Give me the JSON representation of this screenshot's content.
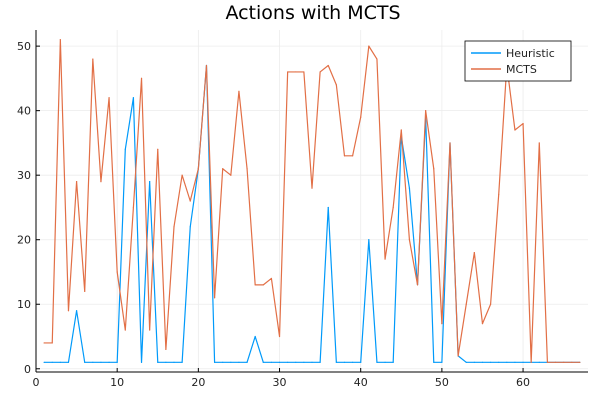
{
  "chart_data": {
    "type": "line",
    "title": "Actions with MCTS",
    "xlabel": "",
    "ylabel": "",
    "xlim": [
      0,
      68
    ],
    "ylim": [
      -0.5,
      52.5
    ],
    "xticks": [
      0,
      10,
      20,
      30,
      40,
      50,
      60
    ],
    "yticks": [
      0,
      10,
      20,
      30,
      40,
      50
    ],
    "grid": true,
    "legend_position": "top-right",
    "x": [
      1,
      2,
      3,
      4,
      5,
      6,
      7,
      8,
      9,
      10,
      11,
      12,
      13,
      14,
      15,
      16,
      17,
      18,
      19,
      20,
      21,
      22,
      23,
      24,
      25,
      26,
      27,
      28,
      29,
      30,
      31,
      32,
      33,
      34,
      35,
      36,
      37,
      38,
      39,
      40,
      41,
      42,
      43,
      44,
      45,
      46,
      47,
      48,
      49,
      50,
      51,
      52,
      53,
      54,
      55,
      56,
      57,
      58,
      59,
      60,
      61,
      62,
      63,
      64,
      65,
      66,
      67
    ],
    "series": [
      {
        "name": "Heuristic",
        "color": "#009AFA",
        "values": [
          1,
          1,
          1,
          1,
          9,
          1,
          1,
          1,
          1,
          1,
          34,
          42,
          1,
          29,
          1,
          1,
          1,
          1,
          22,
          31,
          47,
          1,
          1,
          1,
          1,
          1,
          5,
          1,
          1,
          1,
          1,
          1,
          1,
          1,
          1,
          25,
          1,
          1,
          1,
          1,
          20,
          1,
          1,
          1,
          36,
          28,
          13,
          39,
          1,
          1,
          35,
          2,
          1,
          1,
          1,
          1,
          1,
          1,
          1,
          1,
          1,
          1,
          1,
          1,
          1,
          1,
          1
        ]
      },
      {
        "name": "MCTS",
        "color": "#E26F46",
        "values": [
          4,
          4,
          51,
          9,
          29,
          12,
          48,
          29,
          42,
          15,
          6,
          25,
          45,
          6,
          34,
          3,
          22,
          30,
          26,
          31,
          47,
          11,
          31,
          30,
          43,
          31,
          13,
          13,
          14,
          5,
          46,
          46,
          46,
          28,
          46,
          47,
          44,
          33,
          33,
          39,
          50,
          48,
          17,
          25,
          37,
          20,
          13,
          40,
          31,
          7,
          35,
          2,
          10,
          18,
          7,
          10,
          27,
          47,
          37,
          38,
          1,
          35,
          1,
          1,
          1,
          1,
          1
        ]
      }
    ]
  }
}
